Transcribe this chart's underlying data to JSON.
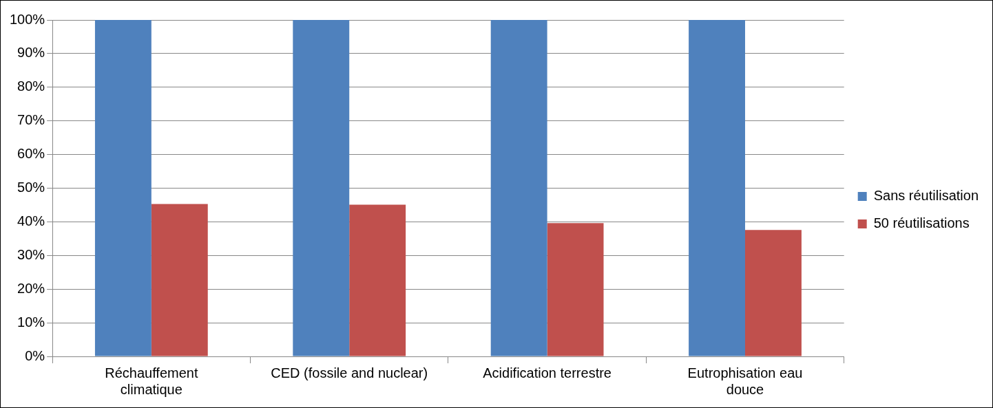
{
  "chart_data": {
    "type": "bar",
    "categories": [
      [
        "Réchauffement",
        "climatique"
      ],
      "CED (fossile and nuclear)",
      "Acidification terrestre",
      [
        "Eutrophisation eau",
        "douce"
      ]
    ],
    "series": [
      {
        "name": "Sans réutilisation",
        "color": "#4f81bd",
        "values": [
          100,
          100,
          100,
          100
        ]
      },
      {
        "name": "50 réutilisations",
        "color": "#c0504d",
        "values": [
          45.3,
          45.1,
          39.6,
          37.6
        ]
      }
    ],
    "ylim": [
      0,
      100
    ],
    "yticks": [
      {
        "value": 0,
        "label": "0%"
      },
      {
        "value": 10,
        "label": "10%"
      },
      {
        "value": 20,
        "label": "20%"
      },
      {
        "value": 30,
        "label": "30%"
      },
      {
        "value": 40,
        "label": "40%"
      },
      {
        "value": 50,
        "label": "50%"
      },
      {
        "value": 60,
        "label": "60%"
      },
      {
        "value": 70,
        "label": "70%"
      },
      {
        "value": 80,
        "label": "80%"
      },
      {
        "value": 90,
        "label": "90%"
      },
      {
        "value": 100,
        "label": "100%"
      }
    ],
    "grid": "y",
    "legend": "right"
  }
}
